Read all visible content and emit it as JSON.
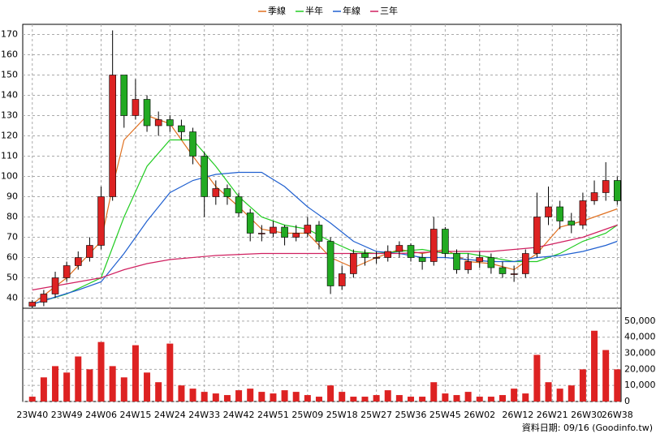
{
  "chart_data": {
    "type": "candlestick",
    "series": [
      {
        "name": "季線",
        "color": "#e07020",
        "x": [
          0,
          9,
          18,
          21,
          24,
          30,
          36,
          42,
          48,
          54,
          60,
          66,
          72,
          78,
          84,
          90,
          96,
          102,
          108,
          114,
          120,
          126,
          132,
          138,
          144,
          150,
          153
        ],
        "values": [
          37,
          50,
          68,
          95,
          118,
          130,
          126,
          110,
          95,
          85,
          74,
          72,
          72,
          60,
          55,
          60,
          64,
          62,
          64,
          58,
          57,
          54,
          62,
          75,
          78,
          82,
          84
        ]
      },
      {
        "name": "半年",
        "color": "#22cc22",
        "x": [
          0,
          9,
          18,
          24,
          30,
          36,
          42,
          48,
          54,
          60,
          66,
          72,
          78,
          84,
          90,
          96,
          102,
          108,
          114,
          120,
          126,
          132,
          138,
          144,
          150,
          153
        ],
        "values": [
          37,
          42,
          50,
          80,
          105,
          118,
          118,
          105,
          90,
          80,
          76,
          74,
          68,
          63,
          62,
          63,
          64,
          62,
          62,
          60,
          58,
          58,
          62,
          68,
          72,
          76
        ]
      },
      {
        "name": "年線",
        "color": "#2060d0",
        "x": [
          0,
          12,
          18,
          24,
          30,
          36,
          42,
          48,
          54,
          60,
          66,
          72,
          78,
          84,
          90,
          96,
          102,
          108,
          114,
          120,
          126,
          132,
          138,
          144,
          150,
          153
        ],
        "values": [
          37,
          44,
          48,
          62,
          78,
          92,
          98,
          101,
          102,
          102,
          95,
          85,
          77,
          68,
          63,
          62,
          60,
          60,
          59,
          58,
          58,
          60,
          61,
          63,
          66,
          68
        ]
      },
      {
        "name": "三年",
        "color": "#d02060",
        "x": [
          0,
          12,
          18,
          24,
          30,
          36,
          48,
          60,
          72,
          84,
          96,
          108,
          120,
          132,
          144,
          150,
          153
        ],
        "values": [
          44,
          48,
          50,
          54,
          57,
          59,
          61,
          62,
          62,
          62,
          62,
          63,
          63,
          65,
          70,
          74,
          76
        ]
      }
    ],
    "candles": {
      "x": [
        0,
        3,
        6,
        9,
        12,
        15,
        18,
        21,
        24,
        27,
        30,
        33,
        36,
        39,
        42,
        45,
        48,
        51,
        54,
        57,
        60,
        63,
        66,
        69,
        72,
        75,
        78,
        81,
        84,
        87,
        90,
        93,
        96,
        99,
        102,
        105,
        108,
        111,
        114,
        117,
        120,
        123,
        126,
        129,
        132,
        135,
        138,
        141,
        144,
        147,
        150,
        153
      ],
      "open": [
        36,
        38,
        42,
        50,
        56,
        60,
        66,
        90,
        150,
        130,
        138,
        125,
        128,
        125,
        122,
        110,
        90,
        94,
        90,
        82,
        72,
        72,
        75,
        70,
        72,
        76,
        68,
        46,
        52,
        62,
        60,
        60,
        63,
        66,
        60,
        58,
        74,
        62,
        54,
        58,
        60,
        55,
        52,
        52,
        62,
        80,
        85,
        78,
        76,
        88,
        92,
        98
      ],
      "high": [
        39,
        44,
        53,
        58,
        63,
        70,
        95,
        172,
        145,
        148,
        140,
        132,
        130,
        128,
        124,
        112,
        98,
        96,
        92,
        84,
        76,
        78,
        76,
        76,
        80,
        78,
        70,
        56,
        64,
        64,
        63,
        66,
        68,
        67,
        62,
        80,
        75,
        64,
        62,
        63,
        62,
        58,
        56,
        64,
        92,
        95,
        88,
        82,
        92,
        98,
        107,
        100
      ],
      "low": [
        35,
        36,
        40,
        48,
        54,
        58,
        64,
        88,
        124,
        128,
        122,
        120,
        122,
        118,
        106,
        80,
        86,
        86,
        80,
        68,
        68,
        70,
        66,
        68,
        70,
        64,
        42,
        44,
        50,
        56,
        57,
        58,
        60,
        58,
        54,
        56,
        60,
        52,
        52,
        55,
        52,
        50,
        48,
        50,
        60,
        76,
        74,
        72,
        74,
        86,
        88,
        86
      ],
      "close": [
        38,
        42,
        50,
        56,
        60,
        66,
        90,
        150,
        130,
        138,
        125,
        128,
        125,
        122,
        110,
        90,
        94,
        90,
        82,
        72,
        72,
        75,
        70,
        72,
        76,
        68,
        46,
        52,
        62,
        60,
        60,
        63,
        66,
        60,
        58,
        74,
        62,
        54,
        58,
        60,
        55,
        52,
        52,
        62,
        80,
        85,
        78,
        76,
        88,
        92,
        98,
        88
      ],
      "volume": [
        3000,
        15000,
        22000,
        18000,
        28000,
        20000,
        37000,
        22000,
        15000,
        35000,
        18000,
        12000,
        36000,
        10000,
        8000,
        6000,
        5000,
        4000,
        7000,
        8000,
        6000,
        5000,
        7000,
        6000,
        4000,
        3000,
        10000,
        6000,
        3000,
        3000,
        4000,
        7000,
        4000,
        3000,
        3000,
        12000,
        5000,
        4000,
        6000,
        3000,
        3000,
        4000,
        8000,
        5000,
        29000,
        12000,
        8000,
        10000,
        20000,
        44000,
        32000,
        20000
      ]
    },
    "up_color": "#dd2222",
    "down_color": "#22aa22",
    "volume_color": "#dd2222",
    "xlim": [
      -2.5,
      154
    ],
    "xticks": [
      {
        "value": 0,
        "label": "23W40"
      },
      {
        "value": 9,
        "label": "23W49"
      },
      {
        "value": 18,
        "label": "24W06"
      },
      {
        "value": 27,
        "label": "24W15"
      },
      {
        "value": 36,
        "label": "24W24"
      },
      {
        "value": 45,
        "label": "24W33"
      },
      {
        "value": 54,
        "label": "24W42"
      },
      {
        "value": 63,
        "label": "24W51"
      },
      {
        "value": 72,
        "label": "25W09"
      },
      {
        "value": 81,
        "label": "25W18"
      },
      {
        "value": 90,
        "label": "25W27"
      },
      {
        "value": 99,
        "label": "25W36"
      },
      {
        "value": 108,
        "label": "25W45"
      },
      {
        "value": 117,
        "label": "26W02"
      },
      {
        "value": 127,
        "label": "26W12"
      },
      {
        "value": 136,
        "label": "26W21"
      },
      {
        "value": 145,
        "label": "26W30"
      },
      {
        "value": 153,
        "label": "26W38"
      }
    ],
    "ylim": [
      35,
      175
    ],
    "yticks": [
      40,
      50,
      60,
      70,
      80,
      90,
      100,
      110,
      120,
      130,
      140,
      150,
      160,
      170
    ],
    "y2lim": [
      0,
      58000
    ],
    "y2ticks": [
      0,
      {
        "value": 10000,
        "label": "10,000"
      },
      {
        "value": 20000,
        "label": "20,000"
      },
      {
        "value": 30000,
        "label": "30,000"
      },
      {
        "value": 40000,
        "label": "40,000"
      },
      {
        "value": 50000,
        "label": "50,000"
      }
    ],
    "grid": true,
    "footnote": "資料日期: 09/16 (Goodinfo.tw)"
  }
}
